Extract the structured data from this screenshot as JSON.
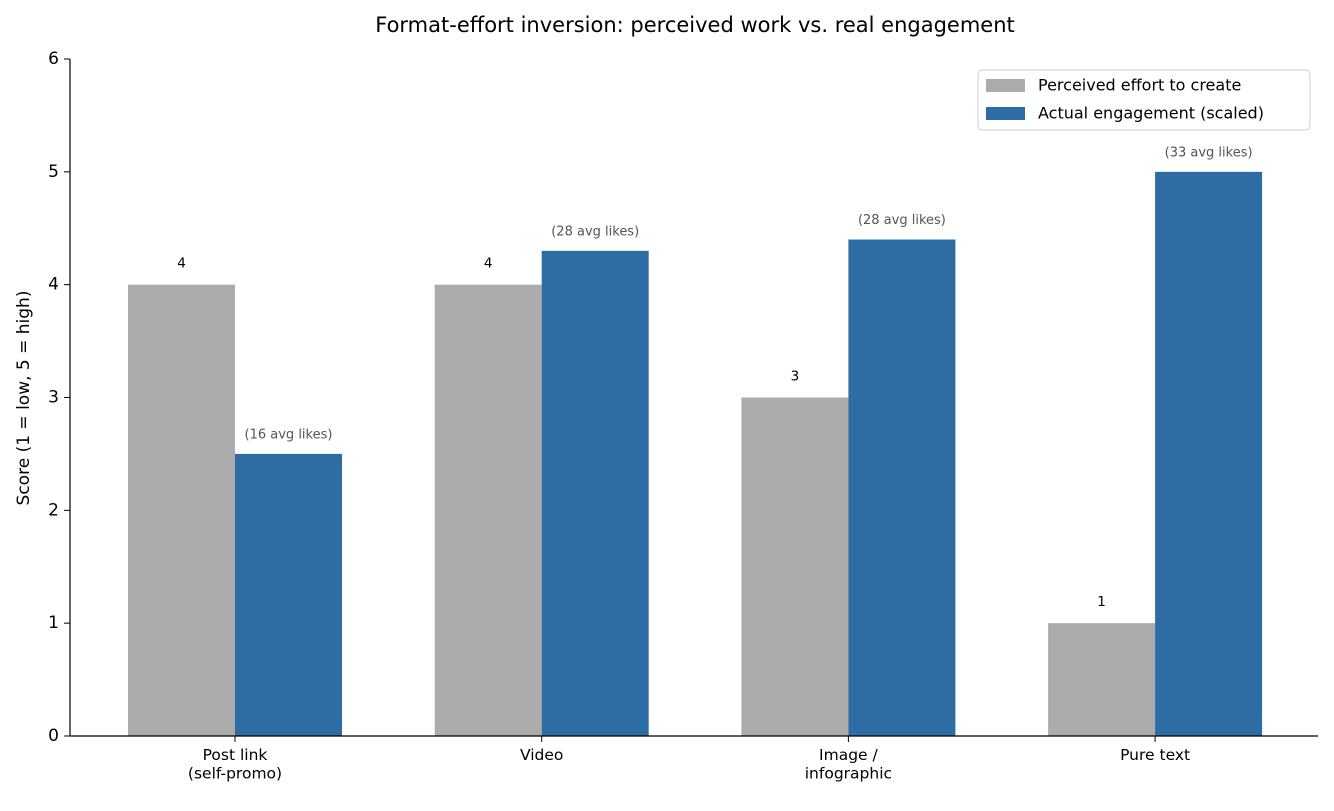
{
  "chart_data": {
    "type": "bar",
    "title": "Format-effort inversion: perceived work vs. real engagement",
    "y_label": "Score (1 = low, 5 = high)",
    "categories": [
      "Post link\n(self-promo)",
      "Video",
      "Image /\ninfographic",
      "Pure text"
    ],
    "series": [
      {
        "name": "Perceived effort to create",
        "color": "#ababab",
        "values": [
          4,
          4,
          3,
          1
        ]
      },
      {
        "name": "Actual engagement (scaled)",
        "color": "#2e6da4",
        "values": [
          2.5,
          4.3,
          4.4,
          5.0
        ],
        "annotations": [
          "(16 avg likes)",
          "(28 avg likes)",
          "(28 avg likes)",
          "(33 avg likes)"
        ]
      }
    ],
    "ylim": [
      0,
      6
    ],
    "yticks": [
      0,
      1,
      2,
      3,
      4,
      5,
      6
    ],
    "legend": "upper right"
  }
}
